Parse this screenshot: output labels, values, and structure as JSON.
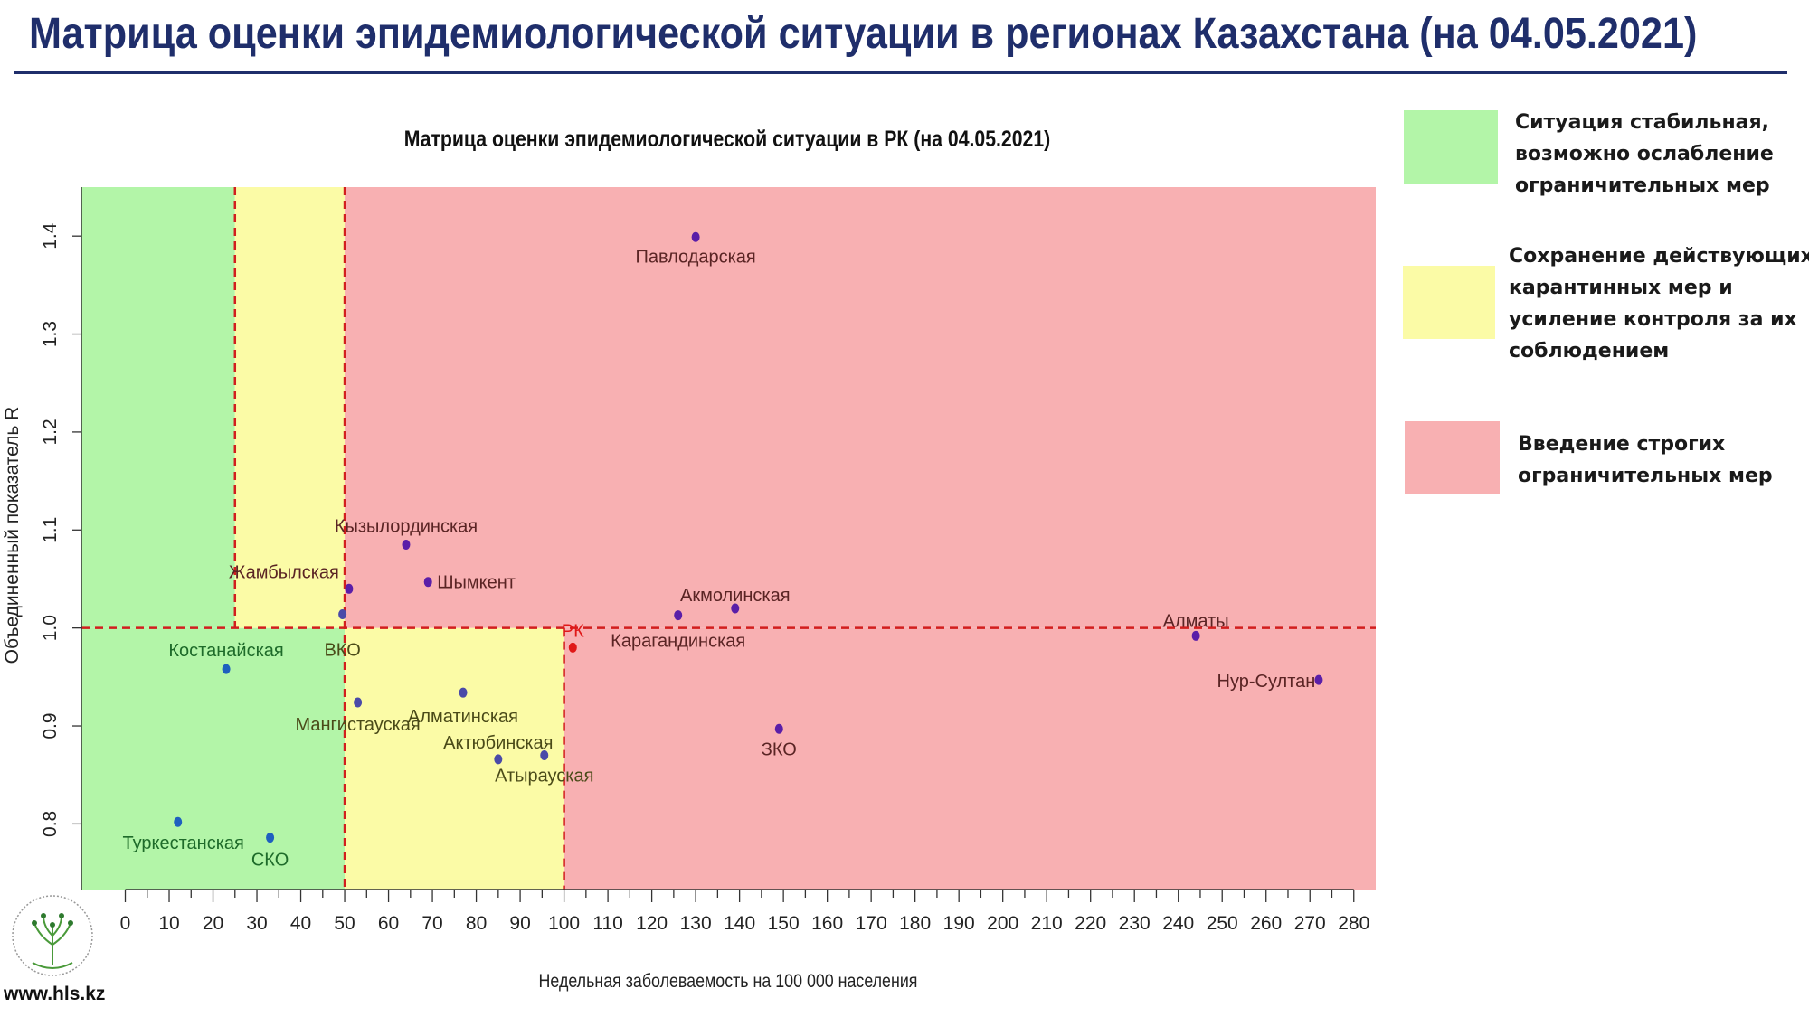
{
  "slide": {
    "title": "Матрица оценки эпидемиологической ситуации в регионах Казахстана (на 04.05.2021)",
    "website": "www.hls.kz"
  },
  "legend": [
    {
      "lines": [
        "Ситуация стабильная,",
        "возможно ослабление",
        "ограничительных мер"
      ],
      "color": "#b3f5a8"
    },
    {
      "lines": [
        "Сохранение действующих",
        "карантинных мер и",
        "усиление контроля за их",
        "соблюдением"
      ],
      "color": "#fbfba6"
    },
    {
      "lines": [
        "Введение строгих",
        "ограничительных мер"
      ],
      "color": "#f8b0b2"
    }
  ],
  "chart_data": {
    "type": "scatter",
    "title": "Матрица оценки эпидемиологической ситуации в РК (на 04.05.2021)",
    "xlabel": "Недельная заболеваемость на 100 000 населения",
    "ylabel": "Объединенный показатель R",
    "xlim": [
      -10,
      285
    ],
    "ylim": [
      0.733,
      1.45
    ],
    "x_ticks_major": [
      0,
      10,
      20,
      30,
      40,
      50,
      60,
      70,
      80,
      90,
      100,
      110,
      120,
      130,
      140,
      150,
      160,
      170,
      180,
      190,
      200,
      210,
      220,
      230,
      240,
      250,
      260,
      270,
      280
    ],
    "y_ticks": [
      0.8,
      0.9,
      1.0,
      1.1,
      1.2,
      1.3,
      1.4
    ],
    "y_tick_labels": [
      "0.8",
      "0.9",
      "1.0",
      "1.1",
      "1.2",
      "1.3",
      "1.4"
    ],
    "grid": false,
    "zones": [
      {
        "x": [
          -10,
          50
        ],
        "y": [
          0.733,
          1.0
        ],
        "color": "#b3f5a8"
      },
      {
        "x": [
          -10,
          25
        ],
        "y": [
          1.0,
          1.45
        ],
        "color": "#b3f5a8"
      },
      {
        "x": [
          25,
          50
        ],
        "y": [
          1.0,
          1.45
        ],
        "color": "#fbfba6"
      },
      {
        "x": [
          50,
          100
        ],
        "y": [
          0.733,
          1.0
        ],
        "color": "#fbfba6"
      },
      {
        "x": [
          50,
          285
        ],
        "y": [
          1.0,
          1.45
        ],
        "color": "#f8b0b2"
      },
      {
        "x": [
          100,
          285
        ],
        "y": [
          0.733,
          1.0
        ],
        "color": "#f8b0b2"
      }
    ],
    "reference_lines": [
      {
        "axis": "x",
        "value": 25,
        "from": 1.0,
        "to": 1.45
      },
      {
        "axis": "x",
        "value": 50,
        "from": 0.733,
        "to": 1.45
      },
      {
        "axis": "x",
        "value": 100,
        "from": 0.733,
        "to": 1.0
      },
      {
        "axis": "y",
        "value": 1.0,
        "from": -10,
        "to": 285
      }
    ],
    "points": [
      {
        "label": "Павлодарская",
        "x": 130,
        "y": 1.399,
        "zone": "red"
      },
      {
        "label": "Кызылординская",
        "x": 64,
        "y": 1.085,
        "zone": "red"
      },
      {
        "label": "Жамбылская",
        "x": 51,
        "y": 1.04,
        "zone": "red"
      },
      {
        "label": "Шымкент",
        "x": 69,
        "y": 1.047,
        "zone": "red"
      },
      {
        "label": "ВКО",
        "x": 49.5,
        "y": 1.014,
        "zone": "yellow"
      },
      {
        "label": "Акмолинская",
        "x": 139,
        "y": 1.02,
        "zone": "red"
      },
      {
        "label": "Карагандинская",
        "x": 126,
        "y": 1.013,
        "zone": "red"
      },
      {
        "label": "Алматы",
        "x": 244,
        "y": 0.992,
        "zone": "red"
      },
      {
        "label": "Нур-Султан",
        "x": 272,
        "y": 0.947,
        "zone": "red"
      },
      {
        "label": "РК",
        "x": 102,
        "y": 0.98,
        "zone": "rk"
      },
      {
        "label": "Костанайская",
        "x": 23,
        "y": 0.958,
        "zone": "green"
      },
      {
        "label": "Мангистауская",
        "x": 53,
        "y": 0.924,
        "zone": "yellow"
      },
      {
        "label": "Алматинская",
        "x": 77,
        "y": 0.934,
        "zone": "yellow"
      },
      {
        "label": "Актюбинская",
        "x": 85,
        "y": 0.866,
        "zone": "yellow"
      },
      {
        "label": "Атырауская",
        "x": 95.5,
        "y": 0.87,
        "zone": "yellow"
      },
      {
        "label": "ЗКО",
        "x": 149,
        "y": 0.897,
        "zone": "red"
      },
      {
        "label": "Туркестанская",
        "x": 12,
        "y": 0.802,
        "zone": "green"
      },
      {
        "label": "СКО",
        "x": 33,
        "y": 0.786,
        "zone": "green"
      }
    ]
  }
}
